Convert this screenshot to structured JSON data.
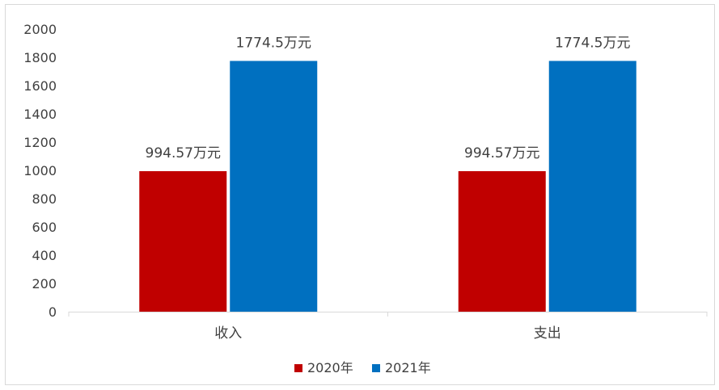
{
  "chart_data": {
    "type": "bar",
    "categories": [
      "收入",
      "支出"
    ],
    "series": [
      {
        "name": "2020年",
        "values": [
          994.57,
          994.57
        ],
        "labels": [
          "994.57万元",
          "994.57万元"
        ],
        "color": "#C00000"
      },
      {
        "name": "2021年",
        "values": [
          1774.5,
          1774.5
        ],
        "labels": [
          "1774.5万元",
          "1774.5万元"
        ],
        "color": "#0070C0"
      }
    ],
    "yticks": [
      "0",
      "200",
      "400",
      "600",
      "800",
      "1000",
      "1200",
      "1400",
      "1600",
      "1800",
      "2000"
    ],
    "ylim": [
      0,
      2000
    ],
    "grid": false,
    "legend_position": "bottom"
  }
}
